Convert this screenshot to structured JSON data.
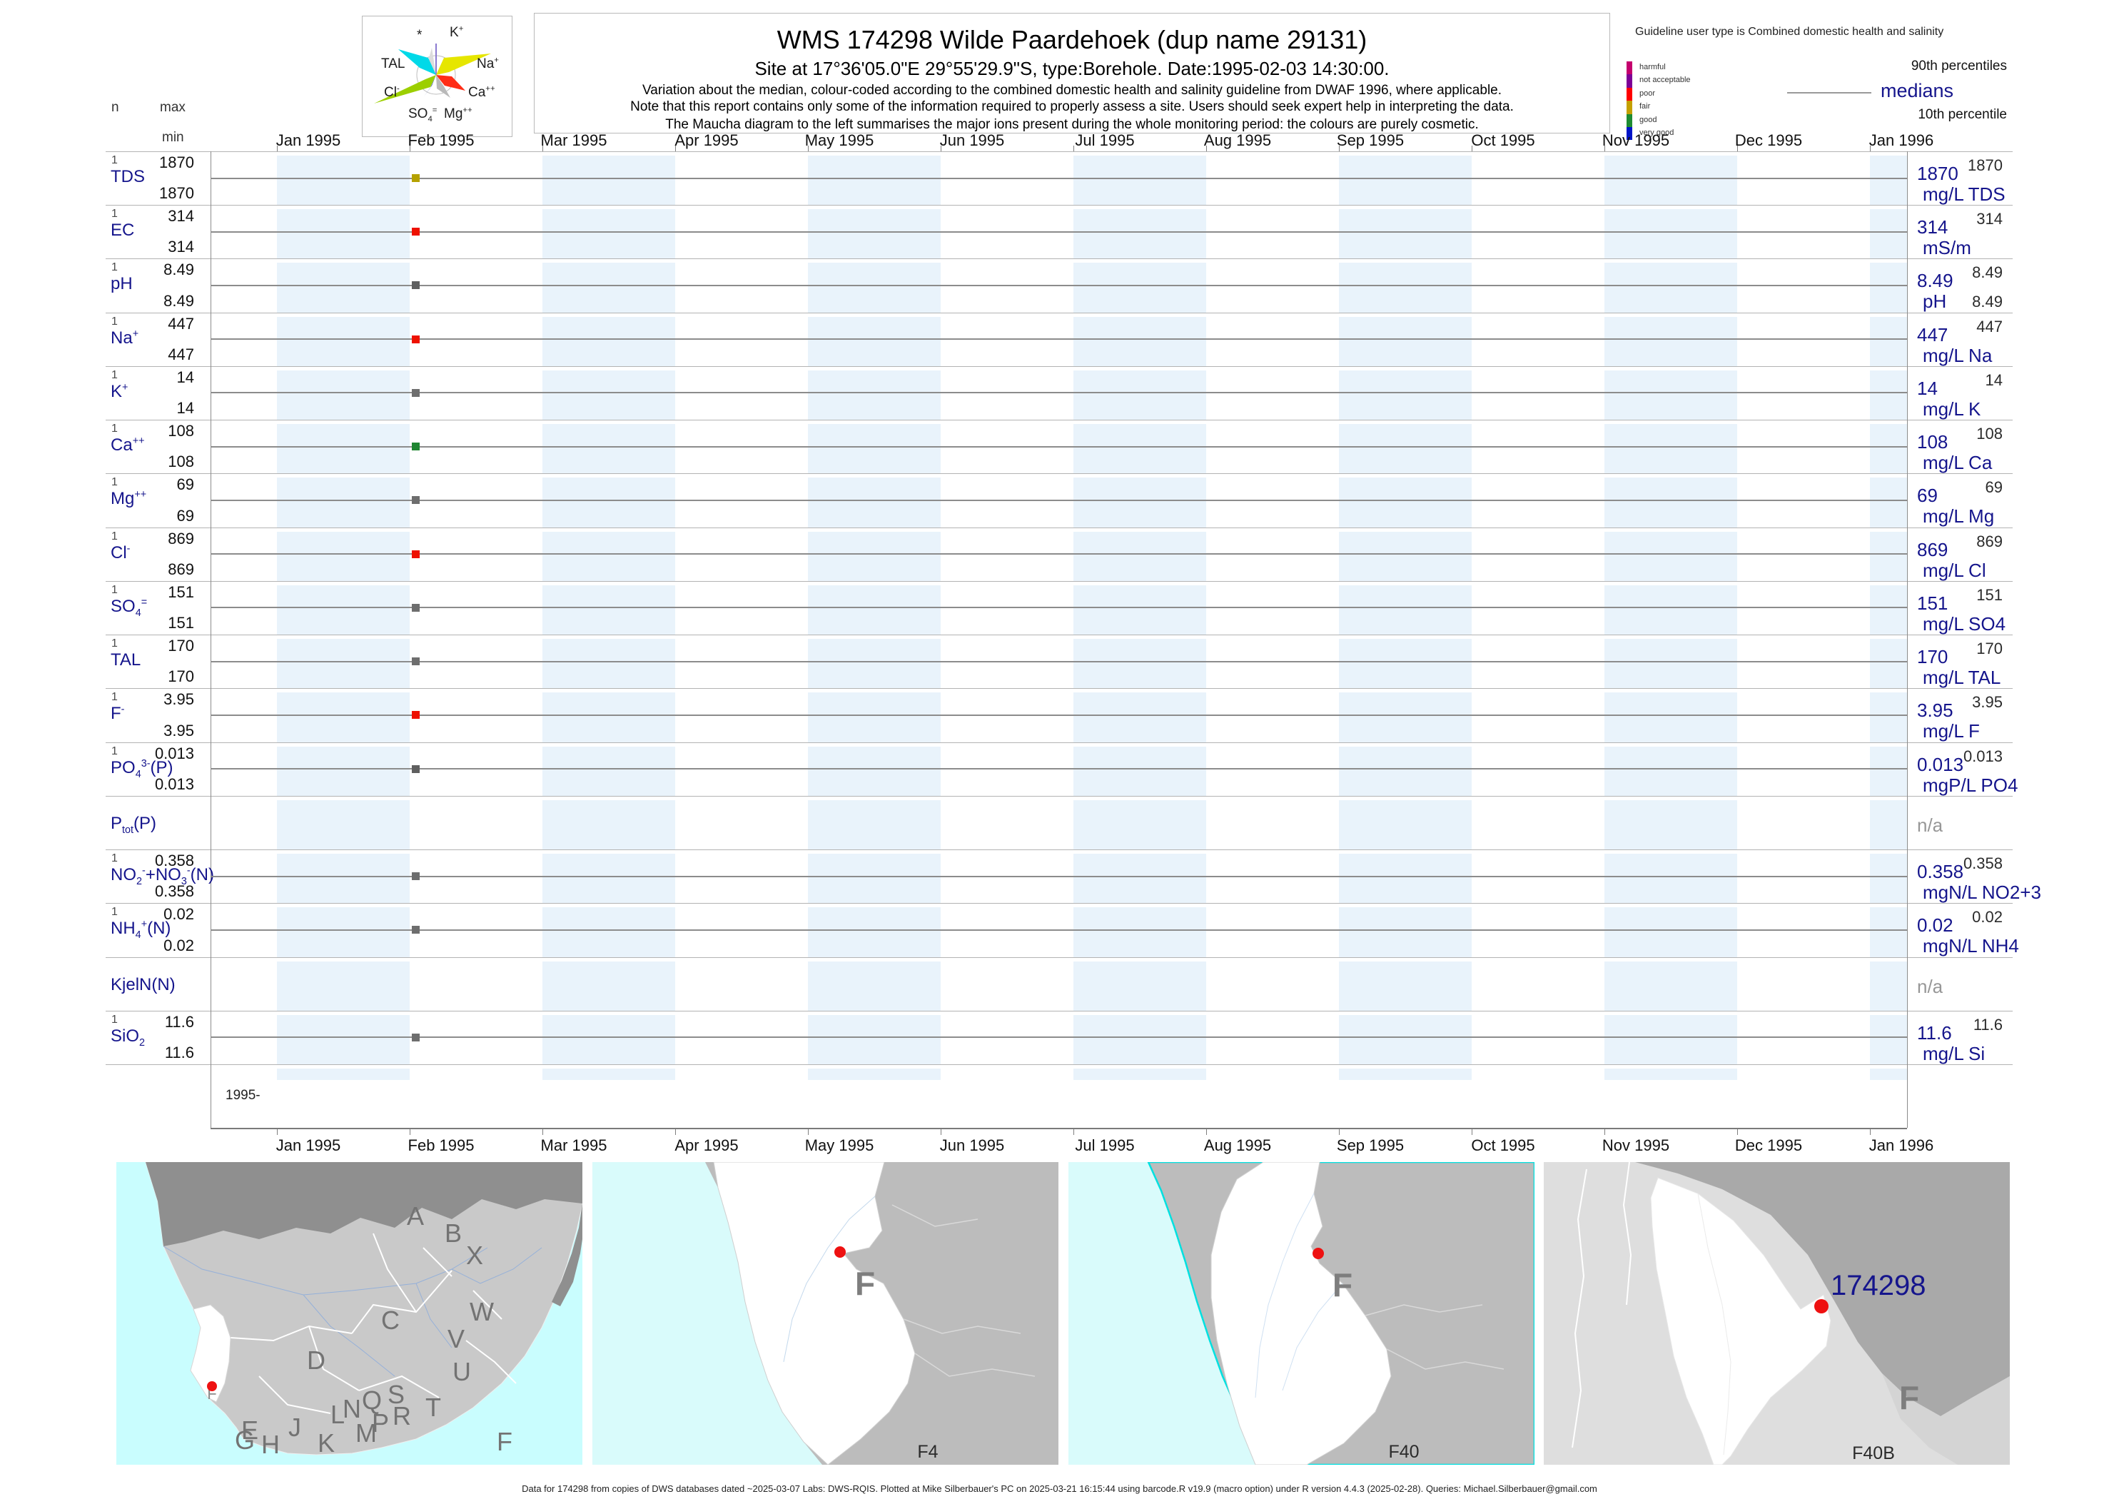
{
  "colors": {
    "navy": "#15158c",
    "stripe_blue": "#e9f3fb",
    "median_line": "#8c8c8c",
    "site_marker": "#ee1111",
    "ocean_cyan": "#c9fdfe",
    "land_gray": "#c9c9c9",
    "outside_gray": "#8f8f8f"
  },
  "header": {
    "left": {
      "n": "n",
      "max": "max",
      "min": "min"
    },
    "title": "WMS 174298  Wilde Paardehoek (dup name 29131)",
    "site_line": "Site at 17°36'05.0\"E 29°55'29.9\"S, type:Borehole. Date:1995-02-03 14:30:00.",
    "notes": [
      "Variation about the median,  colour-coded according to the combined domestic health and salinity guideline from DWAF 1996, where applicable.",
      "Note that this report contains only some of the information required to properly assess a site. Users should seek expert help in interpreting the data.",
      "The Maucha diagram to the left summarises the major ions present during the whole monitoring period: the colours are purely cosmetic."
    ]
  },
  "maucha": {
    "labels": [
      "*",
      "K^{+}",
      "TAL",
      "Na^{+}",
      "Cl^{-}",
      "Ca^{++}",
      "SO_{4}^{=}",
      "Mg^{++}"
    ]
  },
  "guideline": {
    "header": "Guideline user type is Combined domestic health and salinity",
    "classes": [
      {
        "label": "harmful",
        "color": "#c4006e"
      },
      {
        "label": "not acceptable",
        "color": "#7d0096"
      },
      {
        "label": "poor",
        "color": "#ff0000"
      },
      {
        "label": "fair",
        "color": "#c4a000"
      },
      {
        "label": "good",
        "color": "#1e8c32"
      },
      {
        "label": "very good",
        "color": "#0014c8"
      }
    ],
    "p90_label": "90th percentiles",
    "median_label": "medians",
    "p10_label": "10th percentile"
  },
  "axis": {
    "months": [
      "Jan 1995",
      "Feb 1995",
      "Mar 1995",
      "Apr 1995",
      "May 1995",
      "Jun 1995",
      "Jul 1995",
      "Aug 1995",
      "Sep 1995",
      "Oct 1995",
      "Nov 1995",
      "Dec 1995",
      "Jan 1996"
    ],
    "year_label": "1995-"
  },
  "rows": [
    {
      "name": "TDS",
      "n": "1",
      "max": "1870",
      "min": "1870",
      "p90": "1870",
      "median": "1870",
      "unit": "mg/L TDS",
      "marker": "#b5a100"
    },
    {
      "name": "EC",
      "n": "1",
      "max": "314",
      "min": "314",
      "p90": "314",
      "median": "314",
      "unit": "mS/m",
      "marker": "#ee1100"
    },
    {
      "name": "pH",
      "n": "1",
      "max": "8.49",
      "min": "8.49",
      "p90": "8.49",
      "median": "8.49",
      "p10": "8.49",
      "unit": "pH",
      "marker": "#5f5f5f"
    },
    {
      "name": "Na^{+}",
      "n": "1",
      "max": "447",
      "min": "447",
      "p90": "447",
      "median": "447",
      "unit": "mg/L Na",
      "marker": "#ee1100"
    },
    {
      "name": "K^{+}",
      "n": "1",
      "max": "14",
      "min": "14",
      "p90": "14",
      "median": "14",
      "unit": "mg/L K",
      "marker": "#6e6e6e"
    },
    {
      "name": "Ca^{++}",
      "n": "1",
      "max": "108",
      "min": "108",
      "p90": "108",
      "median": "108",
      "unit": "mg/L Ca",
      "marker": "#208531"
    },
    {
      "name": "Mg^{++}",
      "n": "1",
      "max": "69",
      "min": "69",
      "p90": "69",
      "median": "69",
      "unit": "mg/L Mg",
      "marker": "#6e6e6e"
    },
    {
      "name": "Cl^{-}",
      "n": "1",
      "max": "869",
      "min": "869",
      "p90": "869",
      "median": "869",
      "unit": "mg/L Cl",
      "marker": "#ee1100"
    },
    {
      "name": "SO_{4}^{=}",
      "n": "1",
      "max": "151",
      "min": "151",
      "p90": "151",
      "median": "151",
      "unit": "mg/L SO4",
      "marker": "#6e6e6e"
    },
    {
      "name": "TAL",
      "n": "1",
      "max": "170",
      "min": "170",
      "p90": "170",
      "median": "170",
      "unit": "mg/L TAL",
      "marker": "#6e6e6e"
    },
    {
      "name": "F^{-}",
      "n": "1",
      "max": "3.95",
      "min": "3.95",
      "p90": "3.95",
      "median": "3.95",
      "unit": "mg/L F",
      "marker": "#ee1100"
    },
    {
      "name": "PO_{4}^{3-}(P)",
      "n": "1",
      "max": "0.013",
      "min": "0.013",
      "p90": "0.013",
      "median": "0.013",
      "unit": "mgP/L PO4",
      "marker": "#5f5f5f"
    },
    {
      "name": "P_{tot}(P)",
      "empty": true,
      "na": "n/a"
    },
    {
      "name": "NO_{2}^{-}+NO_{3}^{-}(N)",
      "n": "1",
      "max": "0.358",
      "min": "0.358",
      "p90": "0.358",
      "median": "0.358",
      "unit": "mgN/L NO2+3",
      "marker": "#6e6e6e"
    },
    {
      "name": "NH_{4}^{+}(N)",
      "n": "1",
      "max": "0.02",
      "min": "0.02",
      "p90": "0.02",
      "median": "0.02",
      "unit": "mgN/L NH4",
      "marker": "#6e6e6e"
    },
    {
      "name": "KjelN(N)",
      "empty": true,
      "na": "n/a"
    },
    {
      "name": "SiO_{2}",
      "n": "1",
      "max": "11.6",
      "min": "11.6",
      "p90": "11.6",
      "median": "11.6",
      "unit": "mg/L Si",
      "marker": "#6e6e6e"
    }
  ],
  "maps": {
    "overview": {
      "region_letters": [
        "A",
        "B",
        "C",
        "D",
        "E",
        "F",
        "G",
        "H",
        "J",
        "K",
        "L",
        "M",
        "N",
        "P",
        "Q",
        "R",
        "S",
        "T",
        "U",
        "V",
        "W",
        "X"
      ],
      "panel_label": "F"
    },
    "f4": {
      "panel_label": "F4",
      "region_letter": "F"
    },
    "f40": {
      "panel_label": "F40",
      "region_letter": "F"
    },
    "f40b": {
      "panel_label": "F40B",
      "region_letter": "F",
      "site_id": "174298"
    }
  },
  "footer": "Data for 174298 from copies of DWS databases dated ~2025-03-07 Labs: DWS-RQIS. Plotted at Mike Silberbauer's PC on 2025-03-21 16:15:44 using barcode.R v19.9 (macro option) under R version 4.4.3 (2025-02-28). Queries: Michael.Silberbauer@gmail.com",
  "chart_data": {
    "type": "scatter",
    "title": "WMS 174298 Wilde Paardehoek (dup name 29131)",
    "subtitle": "Site at 17°36'05.0\"E 29°55'29.9\"S, type:Borehole. Date:1995-02-03 14:30:00.",
    "x_axis": {
      "tick_labels": [
        "Jan 1995",
        "Feb 1995",
        "Mar 1995",
        "Apr 1995",
        "May 1995",
        "Jun 1995",
        "Jul 1995",
        "Aug 1995",
        "Sep 1995",
        "Oct 1995",
        "Nov 1995",
        "Dec 1995",
        "Jan 1996"
      ],
      "range": [
        "Dec 1994",
        "Jan 1996"
      ]
    },
    "sample_date": "1995-02-03 14:30:00",
    "legend": {
      "p90": "90th percentiles",
      "median": "medians",
      "p10": "10th percentile"
    },
    "series": [
      {
        "name": "TDS",
        "unit": "mg/L TDS",
        "n": 1,
        "min": 1870,
        "max": 1870,
        "median": 1870,
        "p90": 1870,
        "points": [
          {
            "x": "1995-02-03",
            "y": 1870
          }
        ],
        "class_color": "#b5a100"
      },
      {
        "name": "EC",
        "unit": "mS/m",
        "n": 1,
        "min": 314,
        "max": 314,
        "median": 314,
        "p90": 314,
        "points": [
          {
            "x": "1995-02-03",
            "y": 314
          }
        ],
        "class_color": "#ee1100"
      },
      {
        "name": "pH",
        "unit": "pH",
        "n": 1,
        "min": 8.49,
        "max": 8.49,
        "median": 8.49,
        "p90": 8.49,
        "p10": 8.49,
        "points": [
          {
            "x": "1995-02-03",
            "y": 8.49
          }
        ],
        "class_color": "#5f5f5f"
      },
      {
        "name": "Na+",
        "unit": "mg/L Na",
        "n": 1,
        "min": 447,
        "max": 447,
        "median": 447,
        "p90": 447,
        "points": [
          {
            "x": "1995-02-03",
            "y": 447
          }
        ],
        "class_color": "#ee1100"
      },
      {
        "name": "K+",
        "unit": "mg/L K",
        "n": 1,
        "min": 14,
        "max": 14,
        "median": 14,
        "p90": 14,
        "points": [
          {
            "x": "1995-02-03",
            "y": 14
          }
        ],
        "class_color": "#6e6e6e"
      },
      {
        "name": "Ca++",
        "unit": "mg/L Ca",
        "n": 1,
        "min": 108,
        "max": 108,
        "median": 108,
        "p90": 108,
        "points": [
          {
            "x": "1995-02-03",
            "y": 108
          }
        ],
        "class_color": "#208531"
      },
      {
        "name": "Mg++",
        "unit": "mg/L Mg",
        "n": 1,
        "min": 69,
        "max": 69,
        "median": 69,
        "p90": 69,
        "points": [
          {
            "x": "1995-02-03",
            "y": 69
          }
        ],
        "class_color": "#6e6e6e"
      },
      {
        "name": "Cl-",
        "unit": "mg/L Cl",
        "n": 1,
        "min": 869,
        "max": 869,
        "median": 869,
        "p90": 869,
        "points": [
          {
            "x": "1995-02-03",
            "y": 869
          }
        ],
        "class_color": "#ee1100"
      },
      {
        "name": "SO4=",
        "unit": "mg/L SO4",
        "n": 1,
        "min": 151,
        "max": 151,
        "median": 151,
        "p90": 151,
        "points": [
          {
            "x": "1995-02-03",
            "y": 151
          }
        ],
        "class_color": "#6e6e6e"
      },
      {
        "name": "TAL",
        "unit": "mg/L TAL",
        "n": 1,
        "min": 170,
        "max": 170,
        "median": 170,
        "p90": 170,
        "points": [
          {
            "x": "1995-02-03",
            "y": 170
          }
        ],
        "class_color": "#6e6e6e"
      },
      {
        "name": "F-",
        "unit": "mg/L F",
        "n": 1,
        "min": 3.95,
        "max": 3.95,
        "median": 3.95,
        "p90": 3.95,
        "points": [
          {
            "x": "1995-02-03",
            "y": 3.95
          }
        ],
        "class_color": "#ee1100"
      },
      {
        "name": "PO4(P)",
        "unit": "mgP/L PO4",
        "n": 1,
        "min": 0.013,
        "max": 0.013,
        "median": 0.013,
        "p90": 0.013,
        "points": [
          {
            "x": "1995-02-03",
            "y": 0.013
          }
        ],
        "class_color": "#5f5f5f"
      },
      {
        "name": "Ptot(P)",
        "unit": "n/a",
        "n": 0,
        "points": []
      },
      {
        "name": "NO2+NO3(N)",
        "unit": "mgN/L NO2+3",
        "n": 1,
        "min": 0.358,
        "max": 0.358,
        "median": 0.358,
        "p90": 0.358,
        "points": [
          {
            "x": "1995-02-03",
            "y": 0.358
          }
        ],
        "class_color": "#6e6e6e"
      },
      {
        "name": "NH4(N)",
        "unit": "mgN/L NH4",
        "n": 1,
        "min": 0.02,
        "max": 0.02,
        "median": 0.02,
        "p90": 0.02,
        "points": [
          {
            "x": "1995-02-03",
            "y": 0.02
          }
        ],
        "class_color": "#6e6e6e"
      },
      {
        "name": "KjelN(N)",
        "unit": "n/a",
        "n": 0,
        "points": []
      },
      {
        "name": "SiO2",
        "unit": "mg/L Si",
        "n": 1,
        "min": 11.6,
        "max": 11.6,
        "median": 11.6,
        "p90": 11.6,
        "points": [
          {
            "x": "1995-02-03",
            "y": 11.6
          }
        ],
        "class_color": "#6e6e6e"
      }
    ]
  }
}
